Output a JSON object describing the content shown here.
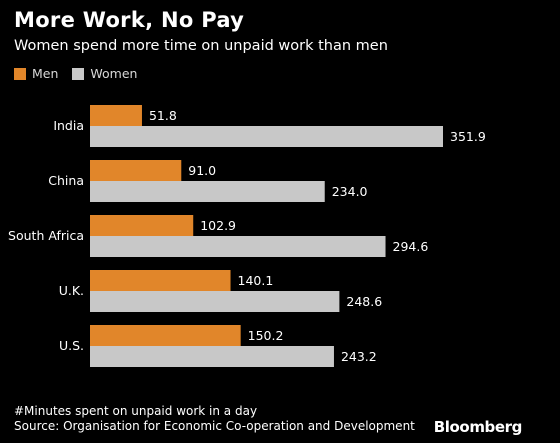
{
  "header": {
    "title": "More Work, No Pay",
    "subtitle": "Women spend more time on unpaid work than men"
  },
  "legend": {
    "items": [
      {
        "label": "Men",
        "color": "#E1862A"
      },
      {
        "label": "Women",
        "color": "#C8C8C8"
      }
    ]
  },
  "chart_data": {
    "type": "bar",
    "orientation": "horizontal",
    "categories": [
      "India",
      "China",
      "South Africa",
      "U.K.",
      "U.S."
    ],
    "series": [
      {
        "name": "Men",
        "values": [
          51.8,
          91.0,
          102.9,
          140.1,
          150.2
        ],
        "color": "#E1862A"
      },
      {
        "name": "Women",
        "values": [
          351.9,
          234.0,
          294.6,
          248.6,
          243.2
        ],
        "color": "#C8C8C8"
      }
    ],
    "xlim": [
      0,
      351.9
    ],
    "grid": false,
    "legend_position": "top-left",
    "value_labels": true
  },
  "footer": {
    "note": "#Minutes spent on unpaid work in a day",
    "source": "Source: Organisation for Economic Co-operation and Development",
    "logo": "Bloomberg"
  }
}
